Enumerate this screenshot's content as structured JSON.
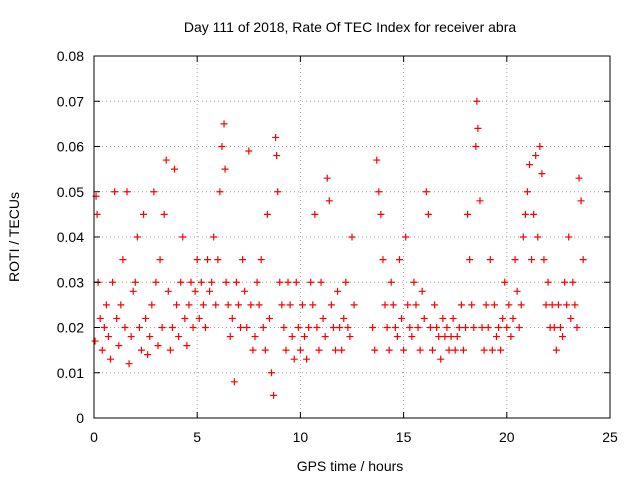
{
  "chart_data": {
    "type": "scatter",
    "title": "Day 111 of 2018, Rate Of TEC Index for receiver abra",
    "xlabel": "GPS time / hours",
    "ylabel": "ROTI / TECUs",
    "xlim": [
      0,
      25
    ],
    "ylim": [
      0,
      0.08
    ],
    "x_ticks": [
      0,
      5,
      10,
      15,
      20,
      25
    ],
    "y_ticks": [
      0,
      0.01,
      0.02,
      0.03,
      0.04,
      0.05,
      0.06,
      0.07,
      0.08
    ],
    "x_tick_labels": [
      "0",
      "5",
      "10",
      "15",
      "20",
      "25"
    ],
    "y_tick_labels": [
      "0",
      "0.01",
      "0.02",
      "0.03",
      "0.04",
      "0.05",
      "0.06",
      "0.07",
      "0.08"
    ],
    "grid": true,
    "marker": "+",
    "color": "#ff0000",
    "series": [
      {
        "name": "ROTI",
        "x": [
          0.05,
          0.1,
          0.15,
          0.2,
          0.3,
          0.4,
          0.5,
          0.6,
          0.7,
          0.8,
          0.9,
          1.0,
          1.1,
          1.2,
          1.3,
          1.4,
          1.5,
          1.6,
          1.7,
          1.8,
          1.9,
          2.0,
          2.1,
          2.2,
          2.3,
          2.4,
          2.5,
          2.6,
          2.7,
          2.8,
          2.9,
          3.0,
          3.1,
          3.2,
          3.3,
          3.4,
          3.5,
          3.6,
          3.7,
          3.8,
          3.9,
          4.0,
          4.1,
          4.2,
          4.3,
          4.4,
          4.5,
          4.6,
          4.7,
          4.8,
          4.9,
          5.0,
          5.1,
          5.2,
          5.3,
          5.4,
          5.5,
          5.6,
          5.7,
          5.8,
          5.9,
          6.0,
          6.1,
          6.2,
          6.3,
          6.35,
          6.4,
          6.5,
          6.6,
          6.7,
          6.8,
          6.9,
          7.0,
          7.1,
          7.2,
          7.3,
          7.4,
          7.5,
          7.6,
          7.7,
          7.8,
          7.9,
          8.0,
          8.1,
          8.2,
          8.3,
          8.4,
          8.5,
          8.6,
          8.7,
          8.8,
          8.85,
          8.9,
          9.0,
          9.1,
          9.2,
          9.3,
          9.4,
          9.5,
          9.6,
          9.7,
          9.8,
          9.9,
          10.0,
          10.1,
          10.2,
          10.3,
          10.4,
          10.5,
          10.6,
          10.7,
          10.8,
          10.9,
          11.0,
          11.1,
          11.2,
          11.3,
          11.4,
          11.5,
          11.6,
          11.7,
          11.8,
          11.9,
          12.0,
          12.1,
          12.2,
          12.3,
          12.4,
          12.5,
          12.6,
          13.5,
          13.6,
          13.7,
          13.8,
          13.9,
          14.0,
          14.1,
          14.2,
          14.3,
          14.4,
          14.5,
          14.6,
          14.7,
          14.8,
          14.9,
          15.0,
          15.1,
          15.2,
          15.3,
          15.4,
          15.5,
          15.6,
          15.7,
          15.8,
          15.9,
          16.0,
          16.1,
          16.2,
          16.3,
          16.4,
          16.5,
          16.6,
          16.7,
          16.8,
          16.9,
          17.0,
          17.1,
          17.2,
          17.3,
          17.4,
          17.5,
          17.6,
          17.7,
          17.8,
          17.9,
          18.0,
          18.1,
          18.2,
          18.3,
          18.4,
          18.5,
          18.55,
          18.6,
          18.7,
          18.8,
          18.9,
          19.0,
          19.1,
          19.2,
          19.3,
          19.4,
          19.5,
          19.6,
          19.7,
          19.8,
          19.9,
          20.0,
          20.1,
          20.2,
          20.3,
          20.4,
          20.5,
          20.6,
          20.7,
          20.8,
          20.9,
          21.0,
          21.1,
          21.2,
          21.3,
          21.4,
          21.5,
          21.6,
          21.7,
          21.8,
          21.9,
          22.0,
          22.1,
          22.2,
          22.3,
          22.4,
          22.5,
          22.6,
          22.7,
          22.8,
          22.9,
          23.0,
          23.1,
          23.2,
          23.3,
          23.4,
          23.5,
          23.6,
          23.7
        ],
        "y": [
          0.017,
          0.049,
          0.045,
          0.03,
          0.022,
          0.015,
          0.02,
          0.025,
          0.018,
          0.013,
          0.03,
          0.05,
          0.022,
          0.016,
          0.025,
          0.035,
          0.02,
          0.05,
          0.012,
          0.018,
          0.028,
          0.03,
          0.04,
          0.02,
          0.015,
          0.045,
          0.022,
          0.014,
          0.018,
          0.025,
          0.05,
          0.03,
          0.016,
          0.035,
          0.02,
          0.045,
          0.057,
          0.028,
          0.015,
          0.02,
          0.055,
          0.025,
          0.018,
          0.03,
          0.04,
          0.022,
          0.016,
          0.025,
          0.03,
          0.02,
          0.028,
          0.035,
          0.022,
          0.03,
          0.025,
          0.02,
          0.035,
          0.028,
          0.03,
          0.04,
          0.025,
          0.035,
          0.05,
          0.06,
          0.065,
          0.055,
          0.03,
          0.025,
          0.018,
          0.022,
          0.008,
          0.03,
          0.025,
          0.02,
          0.035,
          0.028,
          0.02,
          0.059,
          0.025,
          0.015,
          0.018,
          0.03,
          0.025,
          0.035,
          0.02,
          0.015,
          0.045,
          0.022,
          0.01,
          0.005,
          0.062,
          0.058,
          0.05,
          0.03,
          0.025,
          0.02,
          0.015,
          0.03,
          0.025,
          0.018,
          0.013,
          0.03,
          0.02,
          0.015,
          0.025,
          0.018,
          0.013,
          0.02,
          0.03,
          0.025,
          0.045,
          0.02,
          0.015,
          0.03,
          0.022,
          0.018,
          0.053,
          0.048,
          0.025,
          0.02,
          0.015,
          0.028,
          0.02,
          0.015,
          0.022,
          0.03,
          0.02,
          0.018,
          0.04,
          0.025,
          0.02,
          0.015,
          0.057,
          0.05,
          0.045,
          0.035,
          0.025,
          0.02,
          0.015,
          0.03,
          0.025,
          0.02,
          0.018,
          0.035,
          0.022,
          0.015,
          0.04,
          0.025,
          0.02,
          0.018,
          0.03,
          0.025,
          0.02,
          0.015,
          0.028,
          0.022,
          0.05,
          0.045,
          0.02,
          0.015,
          0.025,
          0.02,
          0.018,
          0.013,
          0.022,
          0.018,
          0.02,
          0.015,
          0.018,
          0.022,
          0.015,
          0.018,
          0.02,
          0.025,
          0.015,
          0.02,
          0.045,
          0.035,
          0.025,
          0.02,
          0.06,
          0.07,
          0.064,
          0.048,
          0.02,
          0.015,
          0.025,
          0.02,
          0.035,
          0.015,
          0.025,
          0.018,
          0.02,
          0.015,
          0.022,
          0.03,
          0.02,
          0.025,
          0.018,
          0.022,
          0.035,
          0.028,
          0.02,
          0.025,
          0.04,
          0.045,
          0.05,
          0.056,
          0.035,
          0.045,
          0.058,
          0.04,
          0.06,
          0.054,
          0.035,
          0.025,
          0.03,
          0.02,
          0.025,
          0.02,
          0.015,
          0.025,
          0.02,
          0.018,
          0.03,
          0.025,
          0.04,
          0.022,
          0.03,
          0.025,
          0.02,
          0.053,
          0.048,
          0.035
        ]
      }
    ]
  }
}
